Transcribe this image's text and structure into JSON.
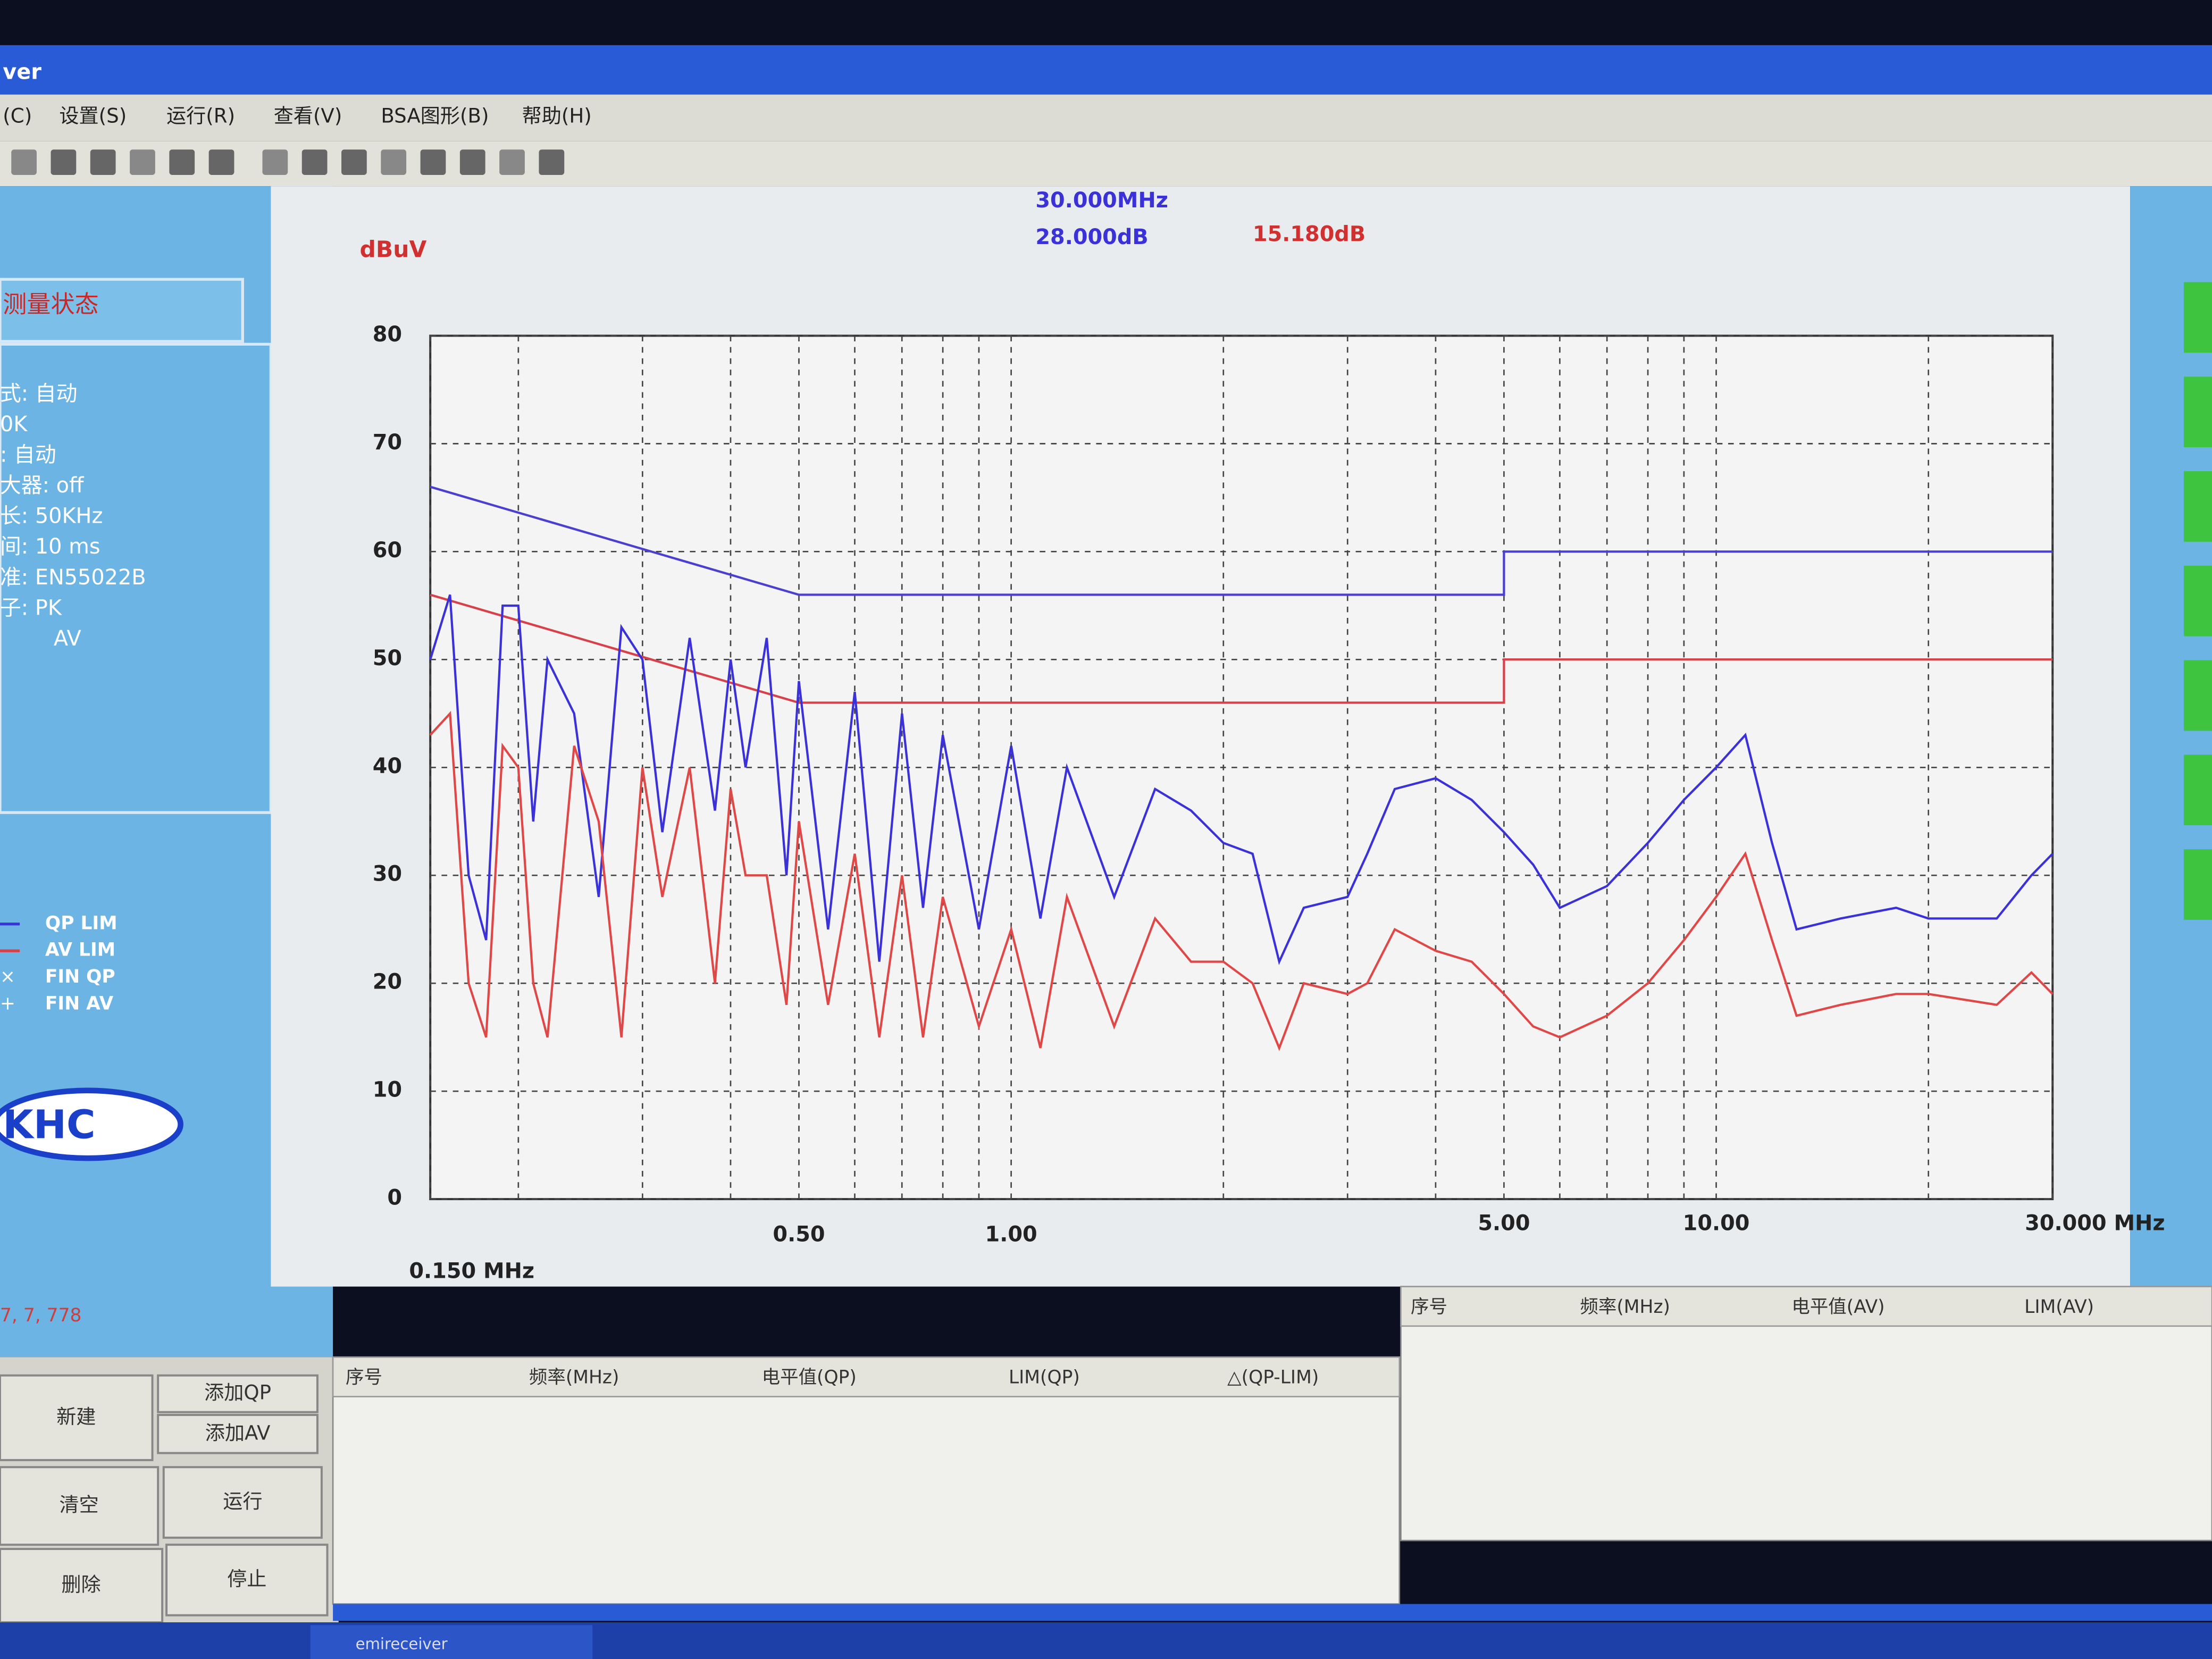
{
  "window": {
    "title": "ver",
    "menu": [
      "(C)",
      "设置(S)",
      "运行(R)",
      "查看(V)",
      "BSA图形(B)",
      "帮助(H)"
    ],
    "panel": {
      "heading": "测量状态",
      "settings": [
        "式: 自动",
        "0K",
        ": 自动",
        "大器: off",
        "长: 50KHz",
        "间: 10 ms",
        "准: EN55022B",
        "子: PK",
        "AV"
      ],
      "legend": [
        "QP LIM",
        "AV LIM",
        "FIN QP",
        "FIN AV"
      ],
      "logo": "KHC",
      "footer": "7, 7, 778"
    },
    "buttons": [
      "新建",
      "添加QP",
      "添加AV",
      "清空",
      "运行",
      "删除",
      "停止"
    ],
    "table_qp": {
      "headers": [
        "序号",
        "频率(MHz)",
        "电平值(QP)",
        "LIM(QP)",
        "△(QP-LIM)"
      ]
    },
    "table_av": {
      "headers": [
        "序号",
        "频率(MHz)",
        "电平值(AV)",
        "LIM(AV)"
      ]
    },
    "taskbar": "emireceiver"
  },
  "chart_data": {
    "type": "line",
    "unit_label": "dBuV",
    "marker": {
      "frequency": "30.000MHz",
      "qp": "28.000dB",
      "av": "15.180dB"
    },
    "xlog": true,
    "xlim": [
      0.15,
      30
    ],
    "ylim": [
      0,
      80
    ],
    "yticks": [
      0,
      10,
      20,
      30,
      40,
      50,
      60,
      70,
      80
    ],
    "xticks": [
      {
        "value": 0.15,
        "label": "0.150 MHz"
      },
      {
        "value": 0.5,
        "label": "0.50"
      },
      {
        "value": 1,
        "label": "1.00"
      },
      {
        "value": 5,
        "label": "5.00"
      },
      {
        "value": 10,
        "label": "10.00"
      },
      {
        "value": 30,
        "label": "30.000 MHz"
      }
    ],
    "xminor": [
      0.2,
      0.3,
      0.4,
      0.6,
      0.7,
      0.8,
      0.9,
      2,
      3,
      4,
      6,
      7,
      8,
      9,
      20
    ],
    "grid": true,
    "series": [
      {
        "color": "#4a3fd0",
        "x": [
          0.15,
          0.5,
          5,
          5,
          30
        ],
        "values": [
          66,
          56,
          56,
          60,
          60
        ]
      },
      {
        "color": "#d8404a",
        "x": [
          0.15,
          0.5,
          5,
          5,
          30
        ],
        "values": [
          56,
          46,
          46,
          50,
          50
        ]
      },
      {
        "color": "#3a32d8",
        "x": [
          0.15,
          0.16,
          0.17,
          0.18,
          0.19,
          0.2,
          0.21,
          0.22,
          0.24,
          0.26,
          0.28,
          0.3,
          0.32,
          0.35,
          0.38,
          0.4,
          0.42,
          0.45,
          0.48,
          0.5,
          0.55,
          0.6,
          0.65,
          0.7,
          0.75,
          0.8,
          0.9,
          1,
          1.1,
          1.2,
          1.4,
          1.6,
          1.8,
          2,
          2.2,
          2.4,
          2.6,
          3,
          3.2,
          3.5,
          4,
          4.5,
          5,
          5.5,
          6,
          7,
          8,
          9,
          10,
          11,
          12,
          13,
          15,
          18,
          20,
          25,
          28,
          30
        ],
        "values": [
          50,
          56,
          30,
          24,
          55,
          55,
          35,
          50,
          45,
          28,
          53,
          50,
          34,
          52,
          36,
          50,
          40,
          52,
          30,
          48,
          25,
          47,
          22,
          45,
          27,
          43,
          25,
          42,
          26,
          40,
          28,
          38,
          36,
          33,
          32,
          22,
          27,
          28,
          32,
          38,
          39,
          37,
          34,
          31,
          27,
          29,
          33,
          37,
          40,
          43,
          33,
          25,
          26,
          27,
          26,
          26,
          30,
          32
        ]
      },
      {
        "color": "#e04848",
        "x": [
          0.15,
          0.16,
          0.17,
          0.18,
          0.19,
          0.2,
          0.21,
          0.22,
          0.24,
          0.26,
          0.28,
          0.3,
          0.32,
          0.35,
          0.38,
          0.4,
          0.42,
          0.45,
          0.48,
          0.5,
          0.55,
          0.6,
          0.65,
          0.7,
          0.75,
          0.8,
          0.9,
          1,
          1.1,
          1.2,
          1.4,
          1.6,
          1.8,
          2,
          2.2,
          2.4,
          2.6,
          3,
          3.2,
          3.5,
          4,
          4.5,
          5,
          5.5,
          6,
          7,
          8,
          9,
          10,
          11,
          12,
          13,
          15,
          18,
          20,
          25,
          28,
          30
        ],
        "values": [
          43,
          45,
          20,
          15,
          42,
          40,
          20,
          15,
          42,
          35,
          15,
          40,
          28,
          40,
          20,
          38,
          30,
          30,
          18,
          35,
          18,
          32,
          15,
          30,
          15,
          28,
          16,
          25,
          14,
          28,
          16,
          26,
          22,
          22,
          20,
          14,
          20,
          19,
          20,
          25,
          23,
          22,
          19,
          16,
          15,
          17,
          20,
          24,
          28,
          32,
          24,
          17,
          18,
          19,
          19,
          18,
          21,
          19
        ]
      }
    ]
  }
}
